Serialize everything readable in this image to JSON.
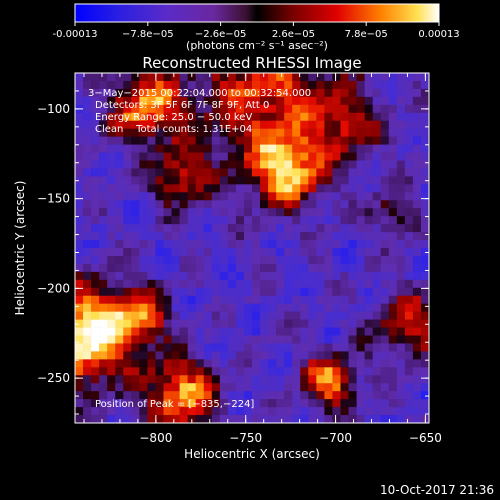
{
  "colorbar": {
    "ticks": [
      "-0.00013",
      "−7.8e−05",
      "−2.6e−05",
      "2.6e−05",
      "7.8e−05",
      "0.00013"
    ],
    "tick_values": [
      -0.00013,
      -7.8e-05,
      -2.6e-05,
      2.6e-05,
      7.8e-05,
      0.00013
    ],
    "unit_label": "(photons cm⁻² s⁻¹ asec⁻²)"
  },
  "chart_data": {
    "type": "heatmap",
    "title": "Reconstructed RHESSI Image",
    "xlabel": "Heliocentric X (arcsec)",
    "ylabel": "Heliocentric Y (arcsec)",
    "xlim": [
      -845,
      -648
    ],
    "ylim": [
      -275,
      -80
    ],
    "xticks": [
      -800,
      -750,
      -700,
      -650
    ],
    "xtick_labels": [
      "−800",
      "−750",
      "−700",
      "−650"
    ],
    "yticks": [
      -100,
      -150,
      -200,
      -250
    ],
    "ytick_labels": [
      "−100",
      "−150",
      "−200",
      "−250"
    ],
    "zlim": [
      -0.00013,
      0.00013
    ],
    "colormap": "rainbow-to-hot",
    "grid": false,
    "peak": {
      "x": -835,
      "y": -224
    },
    "annotations": [
      "3−May−2015 00:22:04.000 to 00:32:54.000",
      "Detectors: 3F 5F 6F 7F 8F 9F, Att 0",
      "Energy Range: 25.0 − 50.0 keV",
      "Clean    Total counts: 1.31E+04",
      "Position of Peak = [−835,−224]"
    ]
  },
  "footer": {
    "timestamp": "10-Oct-2017 21:36"
  }
}
